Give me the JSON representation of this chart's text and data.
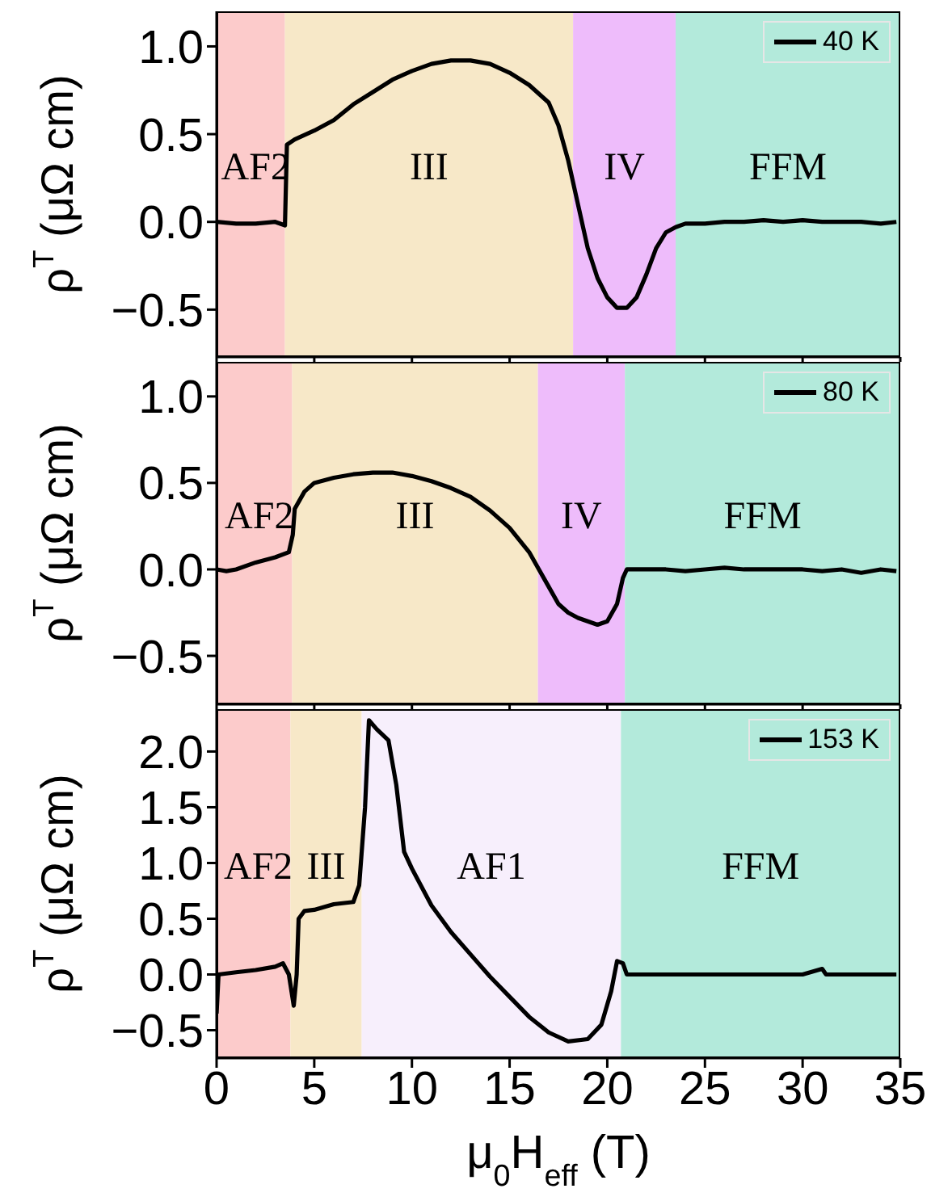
{
  "chart_data": [
    {
      "type": "line",
      "ylabel": "ρ$^{T}$ (μΩ cm)",
      "xlim": [
        0,
        35
      ],
      "xticks": [
        0,
        5,
        10,
        15,
        20,
        25,
        30,
        35
      ],
      "ylim": [
        -0.77,
        1.2
      ],
      "yticks": [
        {
          "value": -0.5,
          "label": "−0.5"
        },
        {
          "value": 0,
          "label": "0.0"
        },
        {
          "value": 0.5,
          "label": "0.5"
        },
        {
          "value": 1,
          "label": "1.0"
        }
      ],
      "tick_labels": "y",
      "legend": "top right",
      "marker": "none",
      "line_style": "solid",
      "bands": [
        {
          "axis": "x",
          "from": 0,
          "to": 3.5,
          "label": "AF2",
          "color": "#fccbcb"
        },
        {
          "axis": "x",
          "from": 3.5,
          "to": 18.25,
          "label": "III",
          "color": "#f7e8c8"
        },
        {
          "axis": "x",
          "from": 18.25,
          "to": 23.5,
          "label": "IV",
          "color": "#eebcfb"
        },
        {
          "axis": "x",
          "from": 23.5,
          "to": 35,
          "label": "FFM",
          "color": "#b3eadb"
        }
      ],
      "series": [
        {
          "name": "40 K",
          "color": "#000000",
          "x": [
            0,
            1,
            2,
            3,
            3.5,
            3.6,
            4,
            5,
            6,
            7,
            8,
            9,
            10,
            11,
            12,
            13,
            14,
            15,
            16,
            17,
            17.5,
            18,
            18.5,
            19,
            19.5,
            20,
            20.5,
            21,
            21.5,
            22,
            22.5,
            23,
            23.5,
            24,
            25,
            26,
            27,
            28,
            29,
            30,
            31,
            32,
            33,
            34,
            34.8
          ],
          "values": [
            0,
            -0.01,
            -0.01,
            0,
            -0.02,
            0.44,
            0.47,
            0.52,
            0.58,
            0.67,
            0.74,
            0.81,
            0.86,
            0.9,
            0.92,
            0.92,
            0.9,
            0.85,
            0.78,
            0.68,
            0.55,
            0.35,
            0.1,
            -0.15,
            -0.32,
            -0.43,
            -0.49,
            -0.49,
            -0.43,
            -0.3,
            -0.15,
            -0.06,
            -0.03,
            -0.01,
            -0.01,
            0,
            0,
            0.01,
            0,
            0.01,
            0,
            0,
            0,
            -0.01,
            0
          ]
        }
      ]
    },
    {
      "type": "line",
      "ylabel": "ρ$^{T}$ (μΩ cm)",
      "xlim": [
        0,
        35
      ],
      "xticks": [
        0,
        5,
        10,
        15,
        20,
        25,
        30,
        35
      ],
      "ylim": [
        -0.78,
        1.2
      ],
      "yticks": [
        {
          "value": -0.5,
          "label": "−0.5"
        },
        {
          "value": 0,
          "label": "0.0"
        },
        {
          "value": 0.5,
          "label": "0.5"
        },
        {
          "value": 1,
          "label": "1.0"
        }
      ],
      "tick_labels": "y",
      "legend": "top right",
      "marker": "none",
      "line_style": "solid",
      "bands": [
        {
          "axis": "x",
          "from": 0,
          "to": 3.87,
          "label": "AF2",
          "color": "#fccbcb"
        },
        {
          "axis": "x",
          "from": 3.87,
          "to": 16.45,
          "label": "III",
          "color": "#f7e8c8"
        },
        {
          "axis": "x",
          "from": 16.45,
          "to": 20.9,
          "label": "IV",
          "color": "#eebcfb"
        },
        {
          "axis": "x",
          "from": 20.9,
          "to": 35,
          "label": "FFM",
          "color": "#b3eadb"
        }
      ],
      "series": [
        {
          "name": "80 K",
          "color": "#000000",
          "x": [
            0,
            0.5,
            1,
            2,
            3,
            3.7,
            3.9,
            4,
            4.5,
            5,
            6,
            7,
            8,
            9,
            10,
            11,
            12,
            13,
            14,
            15,
            16,
            16.5,
            17,
            17.5,
            18,
            18.5,
            19,
            19.5,
            20,
            20.5,
            20.8,
            21,
            22,
            23,
            24,
            25,
            26,
            27,
            28,
            29,
            30,
            31,
            32,
            33,
            34,
            34.8
          ],
          "values": [
            0,
            -0.01,
            0,
            0.04,
            0.07,
            0.1,
            0.2,
            0.35,
            0.45,
            0.5,
            0.53,
            0.55,
            0.56,
            0.56,
            0.54,
            0.51,
            0.47,
            0.42,
            0.34,
            0.24,
            0.1,
            0,
            -0.1,
            -0.2,
            -0.25,
            -0.28,
            -0.3,
            -0.32,
            -0.3,
            -0.2,
            -0.05,
            0,
            0,
            0,
            -0.01,
            0,
            0.01,
            0,
            0,
            0,
            0,
            -0.01,
            0,
            -0.02,
            0,
            -0.01
          ]
        }
      ]
    },
    {
      "type": "line",
      "ylabel": "ρ$^{T}$ (μΩ cm)",
      "xlabel": "μ$_{0}$H$_{eff}$ (T)",
      "xlim": [
        0,
        35
      ],
      "xticks": [
        0,
        5,
        10,
        15,
        20,
        25,
        30,
        35
      ],
      "ylim": [
        -0.75,
        2.38
      ],
      "yticks": [
        {
          "value": -0.5,
          "label": "−0.5"
        },
        {
          "value": 0,
          "label": "0.0"
        },
        {
          "value": 0.5,
          "label": "0.5"
        },
        {
          "value": 1,
          "label": "1.0"
        },
        {
          "value": 1.5,
          "label": "1.5"
        },
        {
          "value": 2,
          "label": "2.0"
        }
      ],
      "legend": "top right",
      "marker": "none",
      "line_style": "solid",
      "bands": [
        {
          "axis": "x",
          "from": 0,
          "to": 3.78,
          "label": "AF2",
          "color": "#fccbcb"
        },
        {
          "axis": "x",
          "from": 3.78,
          "to": 7.43,
          "label": "III",
          "color": "#f7e8c8"
        },
        {
          "axis": "x",
          "from": 7.43,
          "to": 20.7,
          "label": "AF1",
          "color": "#f7effc"
        },
        {
          "axis": "x",
          "from": 20.7,
          "to": 35,
          "label": "FFM",
          "color": "#b3eadb"
        }
      ],
      "series": [
        {
          "name": "153 K",
          "color": "#000000",
          "x": [
            0,
            0.1,
            1,
            2,
            3,
            3.4,
            3.7,
            3.95,
            4.1,
            4.2,
            4.5,
            5,
            6,
            7,
            7.3,
            7.6,
            7.8,
            8.2,
            8.8,
            9.2,
            9.6,
            10,
            11,
            12,
            13,
            14,
            15,
            16,
            17,
            18,
            19,
            19.7,
            20.2,
            20.5,
            20.8,
            21,
            22,
            24,
            26,
            28,
            30,
            31,
            31.2,
            33,
            34.8
          ],
          "values": [
            -0.35,
            0,
            0.02,
            0.04,
            0.07,
            0.1,
            0,
            -0.28,
            0,
            0.5,
            0.57,
            0.58,
            0.63,
            0.65,
            0.8,
            1.5,
            2.28,
            2.2,
            2.1,
            1.7,
            1.1,
            0.95,
            0.62,
            0.38,
            0.18,
            -0.02,
            -0.2,
            -0.38,
            -0.52,
            -0.6,
            -0.58,
            -0.45,
            -0.15,
            0.12,
            0.1,
            0,
            0,
            0,
            0,
            0,
            0,
            0.05,
            0,
            0,
            0
          ]
        }
      ]
    }
  ]
}
